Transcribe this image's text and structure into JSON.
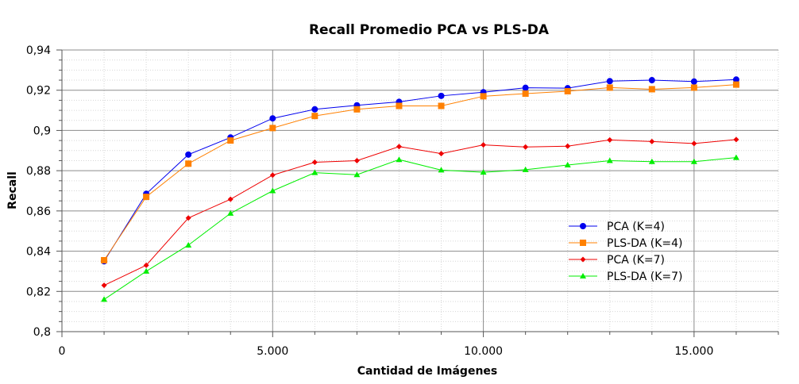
{
  "chart_data": {
    "type": "line",
    "title": "Recall Promedio PCA vs PLS-DA",
    "xlabel": "Cantidad de Imágenes",
    "ylabel": "Recall",
    "xlim": [
      0,
      17000
    ],
    "ylim": [
      0.8,
      0.94
    ],
    "x_ticks": [
      0,
      5000,
      10000,
      15000
    ],
    "x_tick_labels": [
      "0",
      "5.000",
      "10.000",
      "15.000"
    ],
    "y_ticks": [
      0.8,
      0.82,
      0.84,
      0.86,
      0.88,
      0.9,
      0.92,
      0.94
    ],
    "y_tick_labels": [
      "0,8",
      "0,82",
      "0,84",
      "0,86",
      "0,88",
      "0,9",
      "0,92",
      "0,94"
    ],
    "grid": true,
    "legend_position": "right",
    "x": [
      1000,
      2000,
      3000,
      4000,
      5000,
      6000,
      7000,
      8000,
      9000,
      10000,
      11000,
      12000,
      13000,
      14000,
      15000,
      16000
    ],
    "series": [
      {
        "name": "PCA (K=4)",
        "color": "#0000ee",
        "marker": "circle",
        "values": [
          0.835,
          0.8685,
          0.888,
          0.8965,
          0.906,
          0.9105,
          0.9125,
          0.9142,
          0.9172,
          0.919,
          0.9212,
          0.921,
          0.9245,
          0.925,
          0.9243,
          0.9253
        ]
      },
      {
        "name": "PLS-DA (K=4)",
        "color": "#ff8000",
        "marker": "square",
        "values": [
          0.8355,
          0.867,
          0.8835,
          0.895,
          0.9012,
          0.9072,
          0.9105,
          0.9122,
          0.9122,
          0.917,
          0.9183,
          0.9195,
          0.9213,
          0.9205,
          0.9213,
          0.9228
        ]
      },
      {
        "name": "PCA (K=7)",
        "color": "#ee0000",
        "marker": "diamond",
        "values": [
          0.823,
          0.833,
          0.8565,
          0.8658,
          0.8778,
          0.8842,
          0.885,
          0.892,
          0.8885,
          0.8928,
          0.8918,
          0.8922,
          0.8953,
          0.8945,
          0.8935,
          0.8955
        ]
      },
      {
        "name": "PLS-DA (K=7)",
        "color": "#00ee00",
        "marker": "triangle",
        "values": [
          0.816,
          0.83,
          0.843,
          0.8588,
          0.87,
          0.879,
          0.878,
          0.8855,
          0.8803,
          0.8792,
          0.8805,
          0.8828,
          0.885,
          0.8845,
          0.8845,
          0.8865
        ]
      }
    ]
  }
}
